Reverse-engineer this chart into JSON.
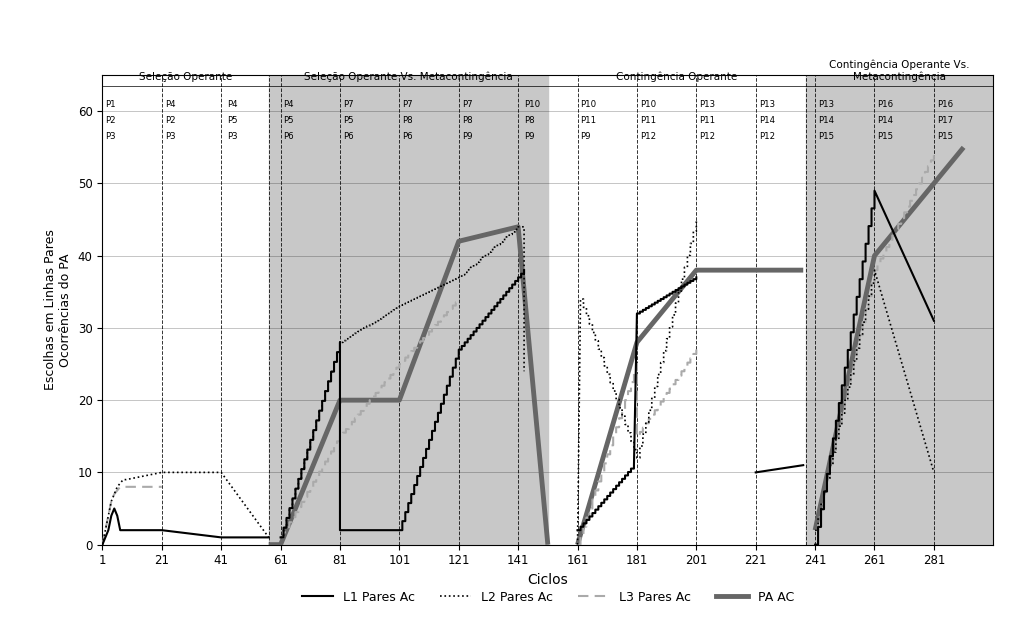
{
  "title": "",
  "xlabel": "Ciclos",
  "ylabel": "Escolhas em Linhas Pares\nOcorrências do PA",
  "xlim": [
    1,
    301
  ],
  "ylim": [
    0,
    65
  ],
  "xticks": [
    1,
    21,
    41,
    61,
    81,
    101,
    121,
    141,
    161,
    181,
    201,
    221,
    241,
    261,
    281
  ],
  "yticks": [
    0,
    10,
    20,
    30,
    40,
    50,
    60
  ],
  "bg_color": "#c8c8c8",
  "sections": [
    {
      "label": "Seleção Operante",
      "x_start": 1,
      "x_end": 57,
      "shaded": false
    },
    {
      "label": "Seleção Operante Vs. Metacontingência",
      "x_start": 57,
      "x_end": 151,
      "shaded": true
    },
    {
      "label": "Contingência Operante",
      "x_start": 151,
      "x_end": 238,
      "shaded": false
    },
    {
      "label": "Contingência Operante Vs.\nMetacontingência",
      "x_start": 238,
      "x_end": 301,
      "shaded": true
    }
  ],
  "vline_positions": [
    21,
    41,
    57,
    61,
    81,
    101,
    121,
    141,
    161,
    181,
    201,
    221,
    238,
    241,
    261,
    281
  ],
  "participant_blocks": [
    {
      "x": 2,
      "lines": [
        "P1",
        "P2",
        "P3"
      ]
    },
    {
      "x": 22,
      "lines": [
        "P4",
        "P2",
        "P3"
      ]
    },
    {
      "x": 43,
      "lines": [
        "P4",
        "P5",
        "P3"
      ]
    },
    {
      "x": 62,
      "lines": [
        "P4",
        "P5",
        "P6"
      ]
    },
    {
      "x": 82,
      "lines": [
        "P7",
        "P5",
        "P6"
      ]
    },
    {
      "x": 102,
      "lines": [
        "P7",
        "P8",
        "P6"
      ]
    },
    {
      "x": 122,
      "lines": [
        "P7",
        "P8",
        "P9"
      ]
    },
    {
      "x": 143,
      "lines": [
        "P10",
        "P8",
        "P9"
      ]
    },
    {
      "x": 162,
      "lines": [
        "P10",
        "P11",
        "P9"
      ]
    },
    {
      "x": 182,
      "lines": [
        "P10",
        "P11",
        "P12"
      ]
    },
    {
      "x": 202,
      "lines": [
        "P13",
        "P11",
        "P12"
      ]
    },
    {
      "x": 222,
      "lines": [
        "P13",
        "P14",
        "P12"
      ]
    },
    {
      "x": 242,
      "lines": [
        "P13",
        "P14",
        "P15"
      ]
    },
    {
      "x": 262,
      "lines": [
        "P16",
        "P14",
        "P15"
      ]
    },
    {
      "x": 282,
      "lines": [
        "P16",
        "P17",
        "P15"
      ]
    }
  ],
  "legend_labels": [
    "L1 Pares Ac",
    "L2 Pares Ac",
    "L3 Pares Ac",
    "PA AC"
  ]
}
